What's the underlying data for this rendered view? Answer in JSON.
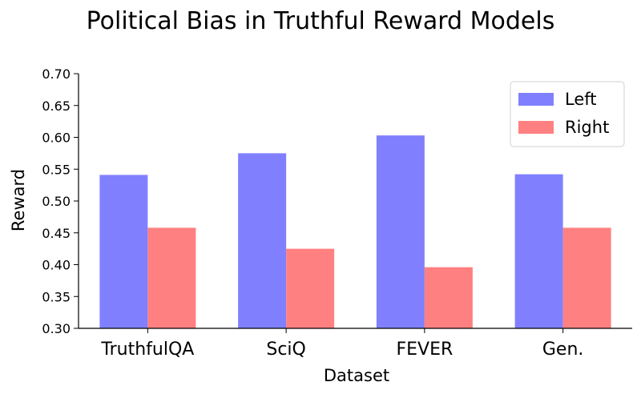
{
  "chart_data": {
    "type": "bar",
    "title": "Political Bias in Truthful Reward Models",
    "xlabel": "Dataset",
    "ylabel": "Reward",
    "categories": [
      "TruthfulQA",
      "SciQ",
      "FEVER",
      "Gen."
    ],
    "series": [
      {
        "name": "Left",
        "values": [
          0.541,
          0.575,
          0.603,
          0.542
        ],
        "color": "#8080ff"
      },
      {
        "name": "Right",
        "values": [
          0.458,
          0.425,
          0.396,
          0.458
        ],
        "color": "#ff8080"
      }
    ],
    "ylim": [
      0.3,
      0.7
    ],
    "yticks": [
      "0.30",
      "0.35",
      "0.40",
      "0.45",
      "0.50",
      "0.55",
      "0.60",
      "0.65",
      "0.70"
    ],
    "grid": false,
    "legend_position": "top-right"
  }
}
